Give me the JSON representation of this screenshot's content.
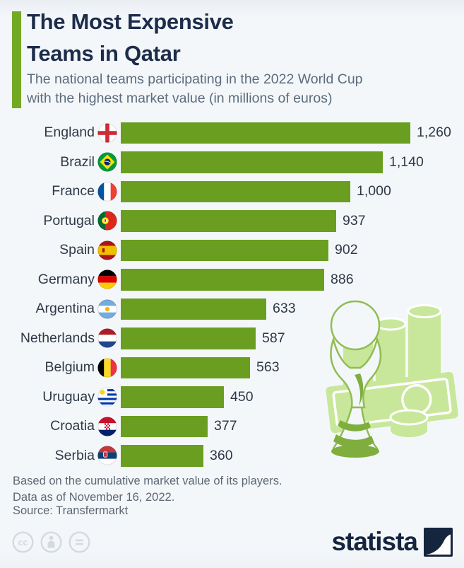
{
  "header": {
    "title_line1": "The Most Expensive",
    "title_line2": "Teams in Qatar",
    "subtitle_line1": "The national teams participating in the 2022 World Cup",
    "subtitle_line2": "with the highest market value (in millions of euros)"
  },
  "chart_data": {
    "type": "bar",
    "orientation": "horizontal",
    "title": "The Most Expensive Teams in Qatar",
    "unit": "millions of euros",
    "categories": [
      "England",
      "Brazil",
      "France",
      "Portugal",
      "Spain",
      "Germany",
      "Argentina",
      "Netherlands",
      "Belgium",
      "Uruguay",
      "Croatia",
      "Serbia"
    ],
    "values": [
      1260,
      1140,
      1000,
      937,
      902,
      886,
      633,
      587,
      563,
      450,
      377,
      360
    ],
    "value_labels": [
      "1,260",
      "1,140",
      "1,000",
      "937",
      "902",
      "886",
      "633",
      "587",
      "563",
      "450",
      "377",
      "360"
    ],
    "flags": [
      "england",
      "brazil",
      "france",
      "portugal",
      "spain",
      "germany",
      "argentina",
      "netherlands",
      "belgium",
      "uruguay",
      "croatia",
      "serbia"
    ],
    "xlim": [
      0,
      1260
    ],
    "grid": false,
    "legend": false,
    "bar_color": "#6a9e20"
  },
  "footer": {
    "note_line1": "Based on the cumulative market value of its players.",
    "note_line2": "Data as of November 16, 2022.",
    "source": "Source: Transfermarkt",
    "brand": "statista"
  },
  "icons": {
    "license": [
      "cc-icon",
      "attribution-icon",
      "equals-icon"
    ],
    "brand_mark": "statista-swoosh-icon",
    "watermark": "world-cup-trophy-and-money"
  },
  "colors": {
    "background": "#f4f7fa",
    "accent_green": "#74aa23",
    "bar_green": "#6a9e20",
    "title_navy": "#1c2c4a",
    "subtitle_gray": "#5c6c7c",
    "text_dark": "#2f3947",
    "footer_gray": "#5d6873",
    "logo_navy": "#16253e",
    "watermark_green": "#c8e79b"
  }
}
